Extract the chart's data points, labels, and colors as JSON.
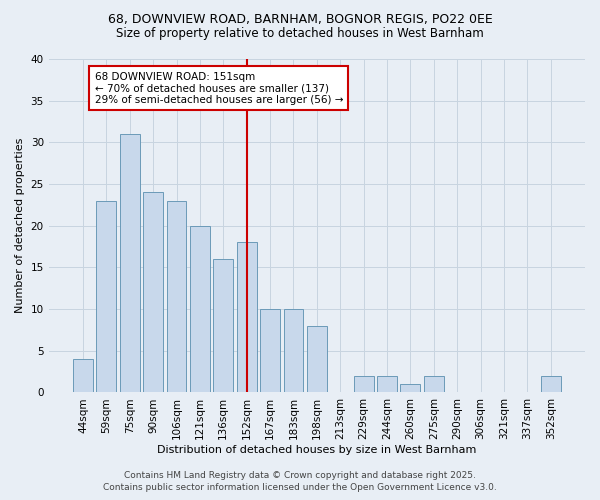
{
  "title_line1": "68, DOWNVIEW ROAD, BARNHAM, BOGNOR REGIS, PO22 0EE",
  "title_line2": "Size of property relative to detached houses in West Barnham",
  "xlabel": "Distribution of detached houses by size in West Barnham",
  "ylabel": "Number of detached properties",
  "bin_labels": [
    "44sqm",
    "59sqm",
    "75sqm",
    "90sqm",
    "106sqm",
    "121sqm",
    "136sqm",
    "152sqm",
    "167sqm",
    "183sqm",
    "198sqm",
    "213sqm",
    "229sqm",
    "244sqm",
    "260sqm",
    "275sqm",
    "290sqm",
    "306sqm",
    "321sqm",
    "337sqm",
    "352sqm"
  ],
  "bar_values": [
    4,
    23,
    31,
    24,
    23,
    20,
    16,
    18,
    10,
    10,
    8,
    0,
    2,
    2,
    1,
    2,
    0,
    0,
    0,
    0,
    2
  ],
  "bar_color": "#c8d8eb",
  "bar_edge_color": "#6b9ab8",
  "grid_color": "#c8d4e0",
  "background_color": "#e8eef5",
  "vline_color": "#cc0000",
  "annotation_text": "68 DOWNVIEW ROAD: 151sqm\n← 70% of detached houses are smaller (137)\n29% of semi-detached houses are larger (56) →",
  "annotation_box_color": "#ffffff",
  "annotation_box_edge": "#cc0000",
  "footer_line1": "Contains HM Land Registry data © Crown copyright and database right 2025.",
  "footer_line2": "Contains public sector information licensed under the Open Government Licence v3.0.",
  "ylim": [
    0,
    40
  ],
  "yticks": [
    0,
    5,
    10,
    15,
    20,
    25,
    30,
    35,
    40
  ],
  "title_fontsize": 9,
  "subtitle_fontsize": 8.5,
  "axis_label_fontsize": 8,
  "tick_fontsize": 7.5,
  "annotation_fontsize": 7.5,
  "footer_fontsize": 6.5
}
